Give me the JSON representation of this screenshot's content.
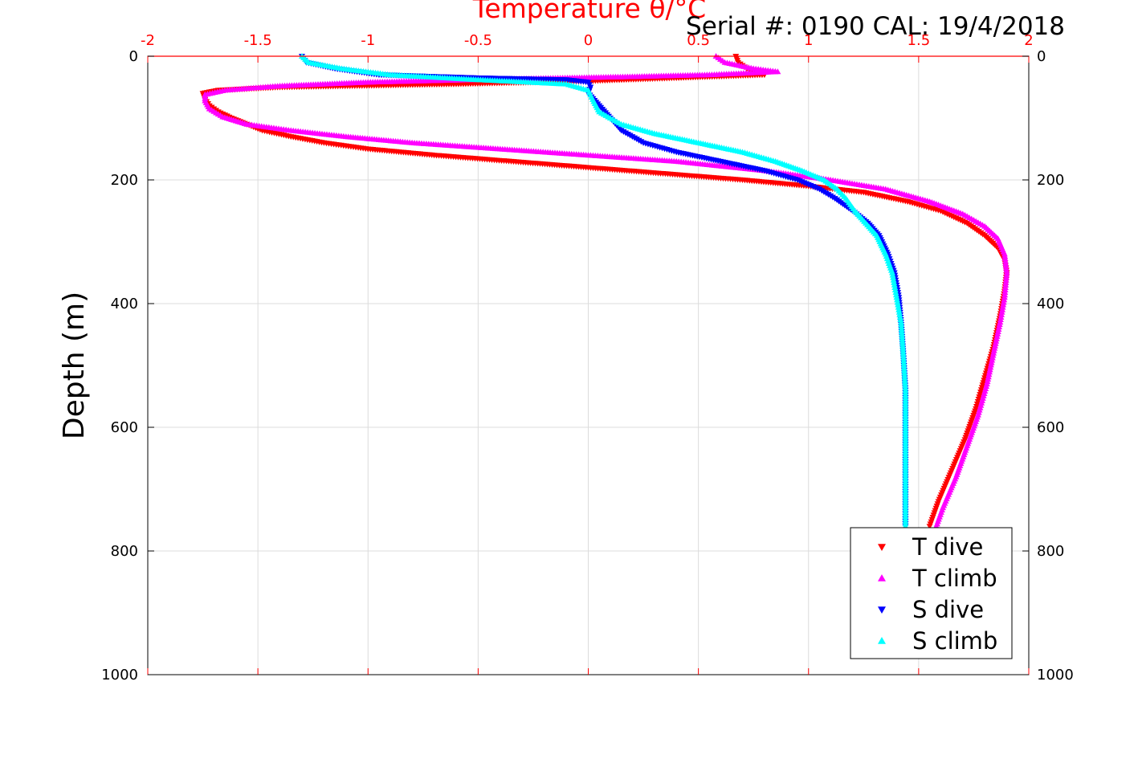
{
  "chart_data": {
    "type": "scatter",
    "title": "Temperature θ/°C",
    "annotation": "Serial #: 0190  CAL: 19/4/2018",
    "xlabel": "Temperature θ/°C",
    "ylabel": "Depth (m)",
    "xlim": [
      -2,
      2
    ],
    "ylim": [
      0,
      1000
    ],
    "y_reversed": true,
    "grid": true,
    "x_ticks": [
      "-2",
      "-1.5",
      "-1",
      "-0.5",
      "0",
      "0.5",
      "1",
      "1.5",
      "2"
    ],
    "x_tick_values": [
      -2,
      -1.5,
      -1,
      -0.5,
      0,
      0.5,
      1,
      1.5,
      2
    ],
    "y_ticks": [
      "0",
      "200",
      "400",
      "600",
      "800",
      "1000"
    ],
    "y_tick_values": [
      0,
      200,
      400,
      600,
      800,
      1000
    ],
    "legend_position": "bottom-right",
    "colors": {
      "axis_top": "#ff0000",
      "grid": "#dcdcdc"
    },
    "series": [
      {
        "name": "T dive",
        "marker": "triangle-down",
        "color": "#ff0000",
        "points": [
          [
            0.67,
            0
          ],
          [
            0.68,
            10
          ],
          [
            0.72,
            20
          ],
          [
            0.8,
            30
          ],
          [
            0.4,
            35
          ],
          [
            0.0,
            40
          ],
          [
            -0.6,
            45
          ],
          [
            -1.4,
            50
          ],
          [
            -1.68,
            55
          ],
          [
            -1.75,
            60
          ],
          [
            -1.74,
            70
          ],
          [
            -1.72,
            80
          ],
          [
            -1.68,
            90
          ],
          [
            -1.62,
            100
          ],
          [
            -1.55,
            110
          ],
          [
            -1.48,
            120
          ],
          [
            -1.35,
            130
          ],
          [
            -1.2,
            140
          ],
          [
            -1.0,
            150
          ],
          [
            -0.7,
            160
          ],
          [
            -0.35,
            170
          ],
          [
            0.0,
            180
          ],
          [
            0.35,
            190
          ],
          [
            0.7,
            200
          ],
          [
            1.0,
            210
          ],
          [
            1.25,
            220
          ],
          [
            1.45,
            235
          ],
          [
            1.6,
            250
          ],
          [
            1.72,
            270
          ],
          [
            1.8,
            290
          ],
          [
            1.86,
            310
          ],
          [
            1.89,
            330
          ],
          [
            1.9,
            350
          ],
          [
            1.89,
            380
          ],
          [
            1.87,
            420
          ],
          [
            1.84,
            470
          ],
          [
            1.8,
            520
          ],
          [
            1.76,
            570
          ],
          [
            1.71,
            620
          ],
          [
            1.65,
            670
          ],
          [
            1.59,
            720
          ],
          [
            1.55,
            760
          ]
        ]
      },
      {
        "name": "T climb",
        "marker": "triangle-up",
        "color": "#ff00ff",
        "points": [
          [
            0.58,
            0
          ],
          [
            0.62,
            10
          ],
          [
            0.75,
            20
          ],
          [
            0.86,
            25
          ],
          [
            0.55,
            30
          ],
          [
            0.2,
            33
          ],
          [
            -0.4,
            37
          ],
          [
            -1.0,
            42
          ],
          [
            -1.4,
            48
          ],
          [
            -1.65,
            55
          ],
          [
            -1.74,
            62
          ],
          [
            -1.74,
            72
          ],
          [
            -1.72,
            85
          ],
          [
            -1.66,
            98
          ],
          [
            -1.55,
            110
          ],
          [
            -1.35,
            120
          ],
          [
            -1.1,
            130
          ],
          [
            -0.8,
            140
          ],
          [
            -0.4,
            150
          ],
          [
            0.0,
            160
          ],
          [
            0.4,
            170
          ],
          [
            0.8,
            185
          ],
          [
            1.1,
            200
          ],
          [
            1.35,
            215
          ],
          [
            1.55,
            235
          ],
          [
            1.7,
            255
          ],
          [
            1.8,
            275
          ],
          [
            1.86,
            295
          ],
          [
            1.89,
            320
          ],
          [
            1.9,
            350
          ],
          [
            1.89,
            390
          ],
          [
            1.87,
            430
          ],
          [
            1.84,
            480
          ],
          [
            1.81,
            530
          ],
          [
            1.77,
            580
          ],
          [
            1.72,
            630
          ],
          [
            1.67,
            680
          ],
          [
            1.61,
            730
          ],
          [
            1.58,
            760
          ]
        ]
      },
      {
        "name": "S dive",
        "marker": "triangle-down",
        "color": "#0000ff",
        "points": [
          [
            -1.3,
            0
          ],
          [
            -1.28,
            10
          ],
          [
            -1.15,
            20
          ],
          [
            -0.95,
            30
          ],
          [
            -0.5,
            35
          ],
          [
            -0.1,
            38
          ],
          [
            0.0,
            42
          ],
          [
            0.01,
            50
          ],
          [
            0.0,
            60
          ],
          [
            0.05,
            80
          ],
          [
            0.1,
            100
          ],
          [
            0.15,
            120
          ],
          [
            0.25,
            140
          ],
          [
            0.4,
            155
          ],
          [
            0.6,
            170
          ],
          [
            0.8,
            185
          ],
          [
            0.95,
            200
          ],
          [
            1.05,
            215
          ],
          [
            1.12,
            230
          ],
          [
            1.2,
            250
          ],
          [
            1.27,
            270
          ],
          [
            1.32,
            290
          ],
          [
            1.36,
            320
          ],
          [
            1.39,
            350
          ],
          [
            1.41,
            390
          ],
          [
            1.42,
            430
          ],
          [
            1.43,
            480
          ],
          [
            1.44,
            540
          ],
          [
            1.44,
            600
          ],
          [
            1.44,
            660
          ],
          [
            1.44,
            720
          ],
          [
            1.44,
            760
          ]
        ]
      },
      {
        "name": "S climb",
        "marker": "triangle-up",
        "color": "#00ffff",
        "points": [
          [
            -1.3,
            0
          ],
          [
            -1.27,
            10
          ],
          [
            -1.12,
            20
          ],
          [
            -0.9,
            30
          ],
          [
            -0.5,
            38
          ],
          [
            -0.1,
            45
          ],
          [
            0.0,
            55
          ],
          [
            0.02,
            70
          ],
          [
            0.05,
            90
          ],
          [
            0.15,
            110
          ],
          [
            0.3,
            125
          ],
          [
            0.5,
            140
          ],
          [
            0.7,
            155
          ],
          [
            0.85,
            170
          ],
          [
            0.97,
            185
          ],
          [
            1.07,
            200
          ],
          [
            1.13,
            215
          ],
          [
            1.17,
            230
          ],
          [
            1.21,
            250
          ],
          [
            1.26,
            270
          ],
          [
            1.31,
            290
          ],
          [
            1.35,
            320
          ],
          [
            1.38,
            350
          ],
          [
            1.4,
            390
          ],
          [
            1.42,
            430
          ],
          [
            1.43,
            480
          ],
          [
            1.44,
            540
          ],
          [
            1.44,
            600
          ],
          [
            1.44,
            660
          ],
          [
            1.44,
            720
          ],
          [
            1.44,
            760
          ]
        ]
      }
    ]
  }
}
